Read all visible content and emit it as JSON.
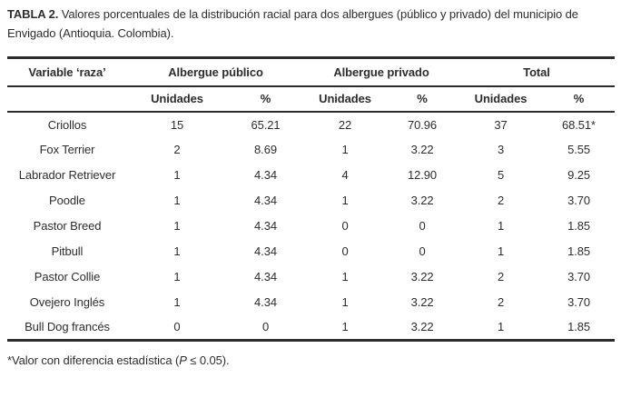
{
  "title": {
    "label": "TABLA 2.",
    "text": "Valores porcentuales de la distribución racial para dos albergues (público y privado) del municipio de Envigado (Antioquia. Colombia)."
  },
  "table": {
    "variable_header": "Variable ‘raza’",
    "group_headers": [
      "Albergue público",
      "Albergue privado",
      "Total"
    ],
    "unit_header": "Unidades",
    "percent_header": "%",
    "rows": [
      {
        "cells": [
          "Criollos",
          "15",
          "65.21",
          "22",
          "70.96",
          "37",
          "68.51*"
        ]
      },
      {
        "cells": [
          "Fox Terrier",
          "2",
          "8.69",
          "1",
          "3.22",
          "3",
          "5.55"
        ]
      },
      {
        "cells": [
          "Labrador Retriever",
          "1",
          "4.34",
          "4",
          "12.90",
          "5",
          "9.25"
        ]
      },
      {
        "cells": [
          "Poodle",
          "1",
          "4.34",
          "1",
          "3.22",
          "2",
          "3.70"
        ]
      },
      {
        "cells": [
          "Pastor Breed",
          "1",
          "4.34",
          "0",
          "0",
          "1",
          "1.85"
        ]
      },
      {
        "cells": [
          "Pitbull",
          "1",
          "4.34",
          "0",
          "0",
          "1",
          "1.85"
        ]
      },
      {
        "cells": [
          "Pastor Collie",
          "1",
          "4.34",
          "1",
          "3.22",
          "2",
          "3.70"
        ]
      },
      {
        "cells": [
          "Ovejero Inglés",
          "1",
          "4.34",
          "1",
          "3.22",
          "2",
          "3.70"
        ]
      },
      {
        "cells": [
          "Bull Dog francés",
          "0",
          "0",
          "1",
          "3.22",
          "1",
          "1.85"
        ]
      }
    ]
  },
  "footnote": {
    "pre": "*Valor con diferencia estadística (",
    "p_symbol": "P",
    "post": " ≤ 0.05)."
  },
  "colors": {
    "text": "#2d2d2f",
    "rule": "#2d2d2f",
    "background": "#ffffff"
  },
  "chart_data": {
    "type": "table",
    "title": "TABLA 2. Valores porcentuales de la distribución racial para dos albergues (público y privado) del municipio de Envigado (Antioquia. Colombia).",
    "columns": [
      "Variable ‘raza’",
      "Albergue público Unidades",
      "Albergue público %",
      "Albergue privado Unidades",
      "Albergue privado %",
      "Total Unidades",
      "Total %"
    ],
    "rows": [
      [
        "Criollos",
        15,
        65.21,
        22,
        70.96,
        37,
        "68.51*"
      ],
      [
        "Fox Terrier",
        2,
        8.69,
        1,
        3.22,
        3,
        5.55
      ],
      [
        "Labrador Retriever",
        1,
        4.34,
        4,
        12.9,
        5,
        9.25
      ],
      [
        "Poodle",
        1,
        4.34,
        1,
        3.22,
        2,
        3.7
      ],
      [
        "Pastor Breed",
        1,
        4.34,
        0,
        0,
        1,
        1.85
      ],
      [
        "Pitbull",
        1,
        4.34,
        0,
        0,
        1,
        1.85
      ],
      [
        "Pastor Collie",
        1,
        4.34,
        1,
        3.22,
        2,
        3.7
      ],
      [
        "Ovejero Inglés",
        1,
        4.34,
        1,
        3.22,
        2,
        3.7
      ],
      [
        "Bull Dog francés",
        0,
        0,
        1,
        3.22,
        1,
        1.85
      ]
    ]
  }
}
